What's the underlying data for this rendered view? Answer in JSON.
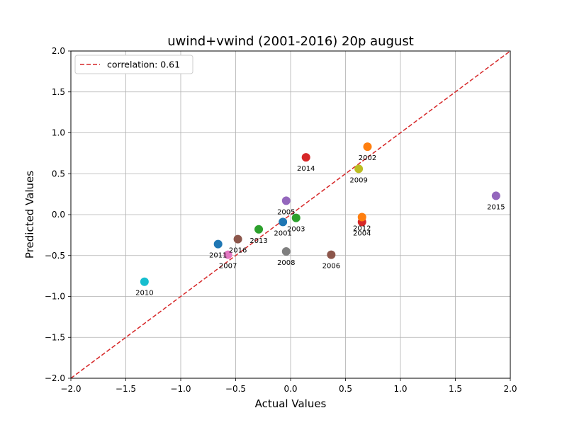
{
  "chart_data": {
    "type": "scatter",
    "title": "uwind+vwind (2001-2016) 20p august",
    "xlabel": "Actual Values",
    "ylabel": "Predicted Values",
    "xlim": [
      -2.0,
      2.0
    ],
    "ylim": [
      -2.0,
      2.0
    ],
    "xticks": [
      "−2.0",
      "−1.5",
      "−1.0",
      "−0.5",
      "0.0",
      "0.5",
      "1.0",
      "1.5",
      "2.0"
    ],
    "yticks": [
      "−2.0",
      "−1.5",
      "−1.0",
      "−0.5",
      "0.0",
      "0.5",
      "1.0",
      "1.5",
      "2.0"
    ],
    "grid": true,
    "legend": {
      "position": "top-left",
      "label": "correlation: 0.61"
    },
    "reference_line": {
      "style": "dashed",
      "color": "#d62728",
      "from": [
        -2,
        -2
      ],
      "to": [
        2,
        2
      ]
    },
    "points": [
      {
        "label": "2001",
        "x": -0.07,
        "y": -0.09,
        "color": "#1f77b4"
      },
      {
        "label": "2002",
        "x": 0.7,
        "y": 0.83,
        "color": "#ff7f0e"
      },
      {
        "label": "2003",
        "x": 0.05,
        "y": -0.04,
        "color": "#2ca02c"
      },
      {
        "label": "2004",
        "x": 0.65,
        "y": -0.09,
        "color": "#d62728"
      },
      {
        "label": "2005",
        "x": -0.04,
        "y": 0.17,
        "color": "#9467bd"
      },
      {
        "label": "2006",
        "x": 0.37,
        "y": -0.49,
        "color": "#8c564b"
      },
      {
        "label": "2007",
        "x": -0.57,
        "y": -0.49,
        "color": "#e377c2"
      },
      {
        "label": "2008",
        "x": -0.04,
        "y": -0.45,
        "color": "#7f7f7f"
      },
      {
        "label": "2009",
        "x": 0.62,
        "y": 0.56,
        "color": "#bcbd22"
      },
      {
        "label": "2010",
        "x": -1.33,
        "y": -0.82,
        "color": "#17becf"
      },
      {
        "label": "2011",
        "x": -0.66,
        "y": -0.36,
        "color": "#1f77b4"
      },
      {
        "label": "2012",
        "x": 0.65,
        "y": -0.03,
        "color": "#ff7f0e"
      },
      {
        "label": "2013",
        "x": -0.29,
        "y": -0.18,
        "color": "#2ca02c"
      },
      {
        "label": "2014",
        "x": 0.14,
        "y": 0.7,
        "color": "#d62728"
      },
      {
        "label": "2015",
        "x": 1.87,
        "y": 0.23,
        "color": "#9467bd"
      },
      {
        "label": "2016",
        "x": -0.48,
        "y": -0.3,
        "color": "#8c564b"
      }
    ]
  }
}
